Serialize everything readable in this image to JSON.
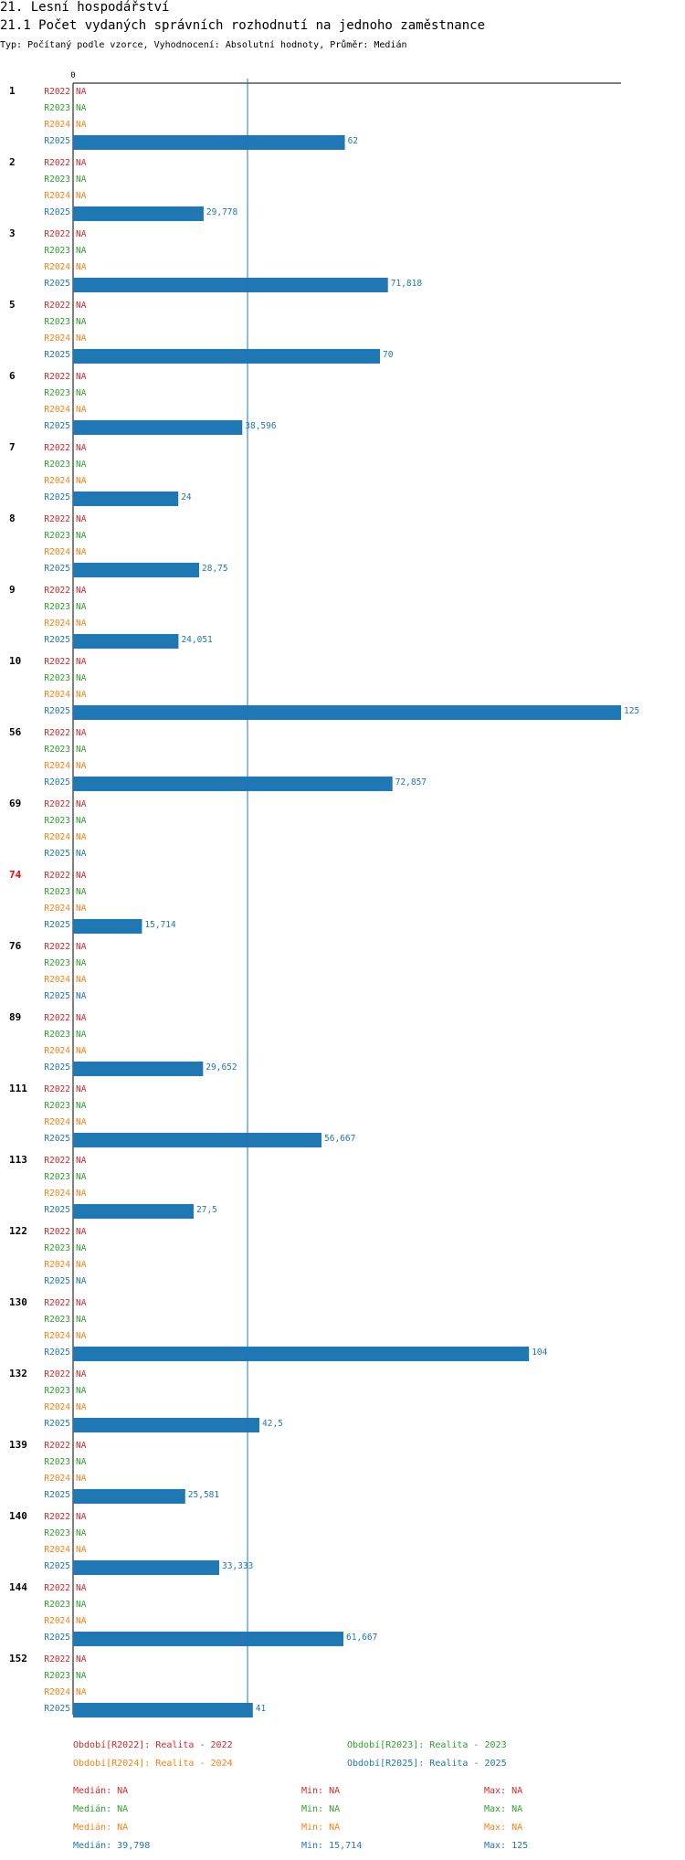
{
  "title": "21. Lesní hospodářství",
  "subtitle": "21.1 Počet vydaných správních rozhodnutí na jednoho zaměstnance",
  "meta": "Typ: Počítaný podle vzorce, Vyhodnocení: Absolutní hodnoty, Průměr: Medián",
  "colors": {
    "R2022": "#d62728",
    "R2023": "#2ca02c",
    "R2024": "#ff7f0e",
    "R2025": "#1f77b4",
    "highlight": "#ff0000"
  },
  "chart_data": {
    "type": "bar",
    "orientation": "horizontal",
    "x_tick_labels": [
      "0"
    ],
    "xlim": [
      0,
      125
    ],
    "na_label": "NA",
    "median_line": 39.798,
    "series_names": [
      "R2022",
      "R2023",
      "R2024",
      "R2025"
    ],
    "groups": [
      {
        "label": "1",
        "values": [
          null,
          null,
          null,
          62
        ],
        "value_labels": [
          "NA",
          "NA",
          "NA",
          "62"
        ]
      },
      {
        "label": "2",
        "values": [
          null,
          null,
          null,
          29.778
        ],
        "value_labels": [
          "NA",
          "NA",
          "NA",
          "29,778"
        ]
      },
      {
        "label": "3",
        "values": [
          null,
          null,
          null,
          71.818
        ],
        "value_labels": [
          "NA",
          "NA",
          "NA",
          "71,818"
        ]
      },
      {
        "label": "5",
        "values": [
          null,
          null,
          null,
          70
        ],
        "value_labels": [
          "NA",
          "NA",
          "NA",
          "70"
        ]
      },
      {
        "label": "6",
        "values": [
          null,
          null,
          null,
          38.596
        ],
        "value_labels": [
          "NA",
          "NA",
          "NA",
          "38,596"
        ]
      },
      {
        "label": "7",
        "values": [
          null,
          null,
          null,
          24
        ],
        "value_labels": [
          "NA",
          "NA",
          "NA",
          "24"
        ]
      },
      {
        "label": "8",
        "values": [
          null,
          null,
          null,
          28.75
        ],
        "value_labels": [
          "NA",
          "NA",
          "NA",
          "28,75"
        ]
      },
      {
        "label": "9",
        "values": [
          null,
          null,
          null,
          24.051
        ],
        "value_labels": [
          "NA",
          "NA",
          "NA",
          "24,051"
        ]
      },
      {
        "label": "10",
        "values": [
          null,
          null,
          null,
          125
        ],
        "value_labels": [
          "NA",
          "NA",
          "NA",
          "125"
        ]
      },
      {
        "label": "56",
        "values": [
          null,
          null,
          null,
          72.857
        ],
        "value_labels": [
          "NA",
          "NA",
          "NA",
          "72,857"
        ]
      },
      {
        "label": "69",
        "values": [
          null,
          null,
          null,
          null
        ],
        "value_labels": [
          "NA",
          "NA",
          "NA",
          "NA"
        ]
      },
      {
        "label": "74",
        "highlight": true,
        "values": [
          null,
          null,
          null,
          15.714
        ],
        "value_labels": [
          "NA",
          "NA",
          "NA",
          "15,714"
        ]
      },
      {
        "label": "76",
        "values": [
          null,
          null,
          null,
          null
        ],
        "value_labels": [
          "NA",
          "NA",
          "NA",
          "NA"
        ]
      },
      {
        "label": "89",
        "values": [
          null,
          null,
          null,
          29.652
        ],
        "value_labels": [
          "NA",
          "NA",
          "NA",
          "29,652"
        ]
      },
      {
        "label": "111",
        "values": [
          null,
          null,
          null,
          56.667
        ],
        "value_labels": [
          "NA",
          "NA",
          "NA",
          "56,667"
        ]
      },
      {
        "label": "113",
        "values": [
          null,
          null,
          null,
          27.5
        ],
        "value_labels": [
          "NA",
          "NA",
          "NA",
          "27,5"
        ]
      },
      {
        "label": "122",
        "values": [
          null,
          null,
          null,
          null
        ],
        "value_labels": [
          "NA",
          "NA",
          "NA",
          "NA"
        ]
      },
      {
        "label": "130",
        "values": [
          null,
          null,
          null,
          104
        ],
        "value_labels": [
          "NA",
          "NA",
          "NA",
          "104"
        ]
      },
      {
        "label": "132",
        "values": [
          null,
          null,
          null,
          42.5
        ],
        "value_labels": [
          "NA",
          "NA",
          "NA",
          "42,5"
        ]
      },
      {
        "label": "139",
        "values": [
          null,
          null,
          null,
          25.581
        ],
        "value_labels": [
          "NA",
          "NA",
          "NA",
          "25,581"
        ]
      },
      {
        "label": "140",
        "values": [
          null,
          null,
          null,
          33.333
        ],
        "value_labels": [
          "NA",
          "NA",
          "NA",
          "33,333"
        ]
      },
      {
        "label": "144",
        "values": [
          null,
          null,
          null,
          61.667
        ],
        "value_labels": [
          "NA",
          "NA",
          "NA",
          "61,667"
        ]
      },
      {
        "label": "152",
        "values": [
          null,
          null,
          null,
          41
        ],
        "value_labels": [
          "NA",
          "NA",
          "NA",
          "41"
        ]
      }
    ]
  },
  "legend": {
    "r2022": "Období[R2022]: Realita - 2022",
    "r2023": "Období[R2023]: Realita - 2023",
    "r2024": "Období[R2024]: Realita - 2024",
    "r2025": "Období[R2025]: Realita - 2025"
  },
  "stats": [
    {
      "median": "Medián: NA",
      "min": "Min: NA",
      "max": "Max: NA"
    },
    {
      "median": "Medián: NA",
      "min": "Min: NA",
      "max": "Max: NA"
    },
    {
      "median": "Medián: NA",
      "min": "Min: NA",
      "max": "Max: NA"
    },
    {
      "median": "Medián: 39,798",
      "min": "Min: 15,714",
      "max": "Max: 125"
    }
  ]
}
